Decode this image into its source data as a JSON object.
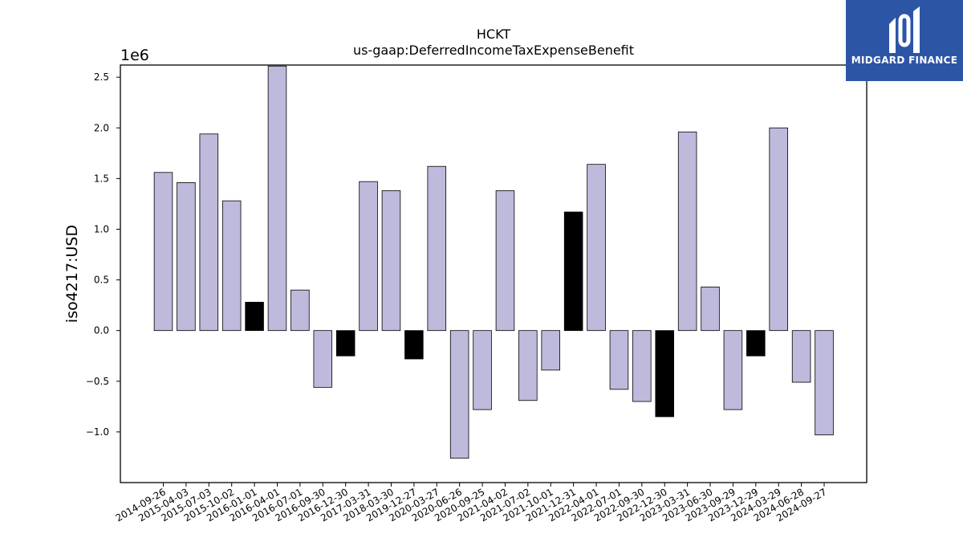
{
  "logo": {
    "text": "MIDGARD FINANCE",
    "icon": "midgard-logo-icon",
    "bg_color": "#2c55a6"
  },
  "chart_data": {
    "type": "bar",
    "title": "HCKT",
    "subtitle": "us-gaap:DeferredIncomeTaxExpenseBenefit",
    "xlabel": "",
    "ylabel": "iso4217:USD",
    "scale_label": "1e6",
    "ylim": [
      -1.5,
      2.62
    ],
    "yticks": [
      -1.0,
      -0.5,
      0.0,
      0.5,
      1.0,
      1.5,
      2.0,
      2.5
    ],
    "ytick_labels": [
      "−1.0",
      "−0.5",
      "0.0",
      "0.5",
      "1.0",
      "1.5",
      "2.0",
      "2.5"
    ],
    "grid": false,
    "default_color": "#bebadc",
    "highlight_color": "#000000",
    "categories": [
      "2014-09-26",
      "2015-04-03",
      "2015-07-03",
      "2015-10-02",
      "2016-01-01",
      "2016-04-01",
      "2016-07-01",
      "2016-09-30",
      "2016-12-30",
      "2017-03-31",
      "2018-03-30",
      "2019-12-27",
      "2020-03-27",
      "2020-06-26",
      "2020-09-25",
      "2021-04-02",
      "2021-07-02",
      "2021-10-01",
      "2021-12-31",
      "2022-04-01",
      "2022-07-01",
      "2022-09-30",
      "2022-12-30",
      "2023-03-31",
      "2023-06-30",
      "2023-09-29",
      "2023-12-29",
      "2024-03-29",
      "2024-06-28",
      "2024-09-27"
    ],
    "values": [
      1.56,
      1.46,
      1.94,
      1.28,
      0.28,
      2.61,
      0.4,
      -0.56,
      -0.25,
      1.47,
      1.38,
      -0.28,
      1.62,
      -1.26,
      -0.78,
      1.38,
      -0.69,
      -0.39,
      1.17,
      1.64,
      -0.58,
      -0.7,
      -0.85,
      1.96,
      0.43,
      -0.78,
      -0.25,
      2.0,
      -0.51,
      -1.03
    ],
    "highlighted": [
      false,
      false,
      false,
      false,
      true,
      false,
      false,
      false,
      true,
      false,
      false,
      true,
      false,
      false,
      false,
      false,
      false,
      false,
      true,
      false,
      false,
      false,
      true,
      false,
      false,
      false,
      true,
      false,
      false,
      false
    ]
  }
}
